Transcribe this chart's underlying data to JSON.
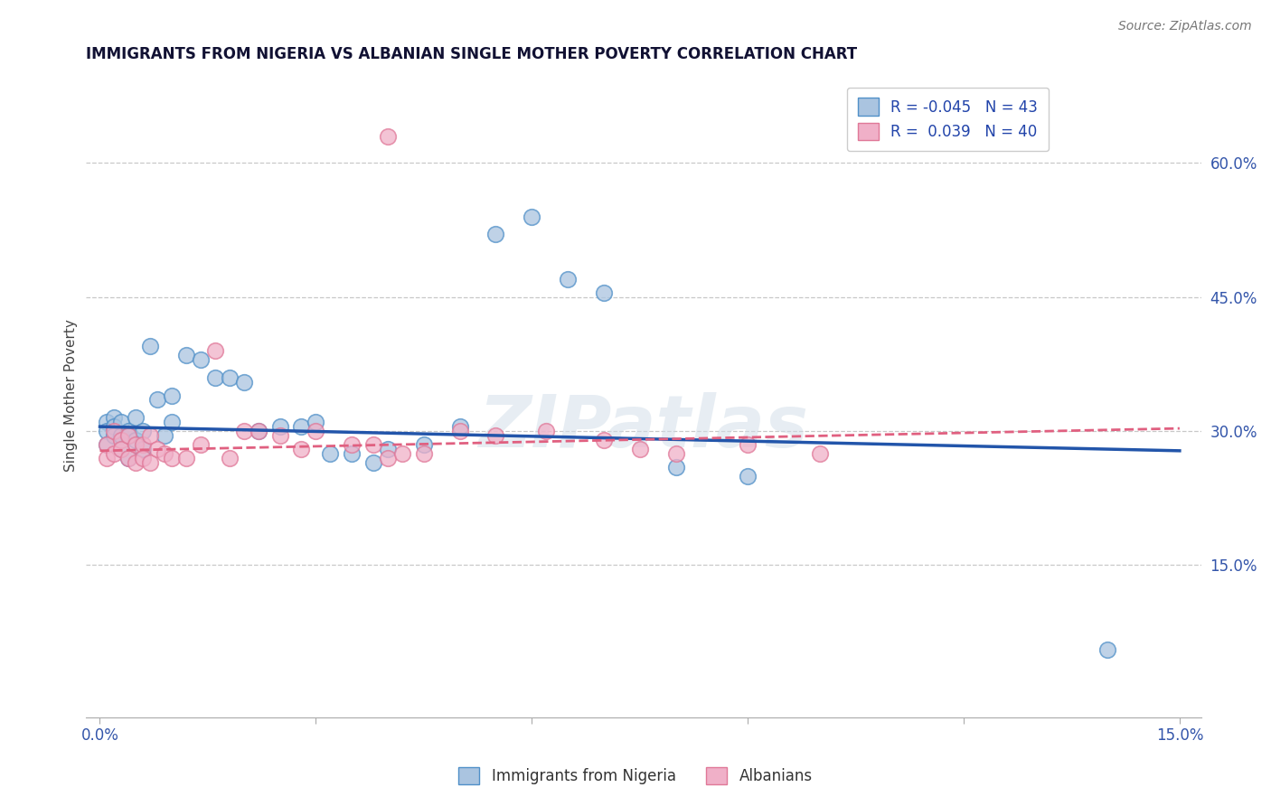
{
  "title": "IMMIGRANTS FROM NIGERIA VS ALBANIAN SINGLE MOTHER POVERTY CORRELATION CHART",
  "source": "Source: ZipAtlas.com",
  "ylabel": "Single Mother Poverty",
  "legend_label1": "Immigrants from Nigeria",
  "legend_label2": "Albanians",
  "R1": -0.045,
  "N1": 43,
  "R2": 0.039,
  "N2": 40,
  "xlim": [
    -0.002,
    0.153
  ],
  "ylim": [
    -0.02,
    0.7
  ],
  "yticks_right": [
    0.15,
    0.3,
    0.45,
    0.6
  ],
  "ytick_right_labels": [
    "15.0%",
    "30.0%",
    "45.0%",
    "60.0%"
  ],
  "gridline_color": "#c8c8c8",
  "background_color": "#ffffff",
  "color_blue": "#aac4e0",
  "color_pink": "#f0b0c8",
  "edge_blue": "#5090c8",
  "edge_pink": "#e07898",
  "line_blue_color": "#2255aa",
  "line_pink_color": "#e06080",
  "watermark": "ZIPatlas",
  "nigeria_x": [
    0.001,
    0.001,
    0.001,
    0.002,
    0.002,
    0.002,
    0.003,
    0.003,
    0.003,
    0.004,
    0.004,
    0.004,
    0.005,
    0.005,
    0.006,
    0.006,
    0.007,
    0.008,
    0.009,
    0.01,
    0.01,
    0.012,
    0.014,
    0.016,
    0.018,
    0.02,
    0.022,
    0.025,
    0.028,
    0.03,
    0.032,
    0.035,
    0.038,
    0.04,
    0.045,
    0.05,
    0.055,
    0.06,
    0.065,
    0.07,
    0.08,
    0.09,
    0.14
  ],
  "nigeria_y": [
    0.31,
    0.3,
    0.285,
    0.315,
    0.305,
    0.295,
    0.31,
    0.295,
    0.28,
    0.3,
    0.295,
    0.27,
    0.315,
    0.29,
    0.3,
    0.28,
    0.395,
    0.335,
    0.295,
    0.34,
    0.31,
    0.385,
    0.38,
    0.36,
    0.36,
    0.355,
    0.3,
    0.305,
    0.305,
    0.31,
    0.275,
    0.275,
    0.265,
    0.28,
    0.285,
    0.305,
    0.52,
    0.54,
    0.47,
    0.455,
    0.26,
    0.25,
    0.055
  ],
  "albanian_x": [
    0.001,
    0.001,
    0.002,
    0.002,
    0.003,
    0.003,
    0.004,
    0.004,
    0.005,
    0.005,
    0.006,
    0.006,
    0.007,
    0.007,
    0.008,
    0.009,
    0.01,
    0.012,
    0.014,
    0.016,
    0.018,
    0.02,
    0.022,
    0.025,
    0.028,
    0.03,
    0.035,
    0.038,
    0.04,
    0.042,
    0.045,
    0.05,
    0.055,
    0.062,
    0.07,
    0.075,
    0.08,
    0.09,
    0.1,
    0.04
  ],
  "albanian_y": [
    0.285,
    0.27,
    0.3,
    0.275,
    0.29,
    0.28,
    0.295,
    0.27,
    0.285,
    0.265,
    0.285,
    0.27,
    0.295,
    0.265,
    0.28,
    0.275,
    0.27,
    0.27,
    0.285,
    0.39,
    0.27,
    0.3,
    0.3,
    0.295,
    0.28,
    0.3,
    0.285,
    0.285,
    0.27,
    0.275,
    0.275,
    0.3,
    0.295,
    0.3,
    0.29,
    0.28,
    0.275,
    0.285,
    0.275,
    0.63
  ],
  "trendline_x": [
    0.0,
    0.15
  ],
  "blue_trend_y0": 0.305,
  "blue_trend_y1": 0.278,
  "pink_trend_y0": 0.278,
  "pink_trend_y1": 0.303
}
